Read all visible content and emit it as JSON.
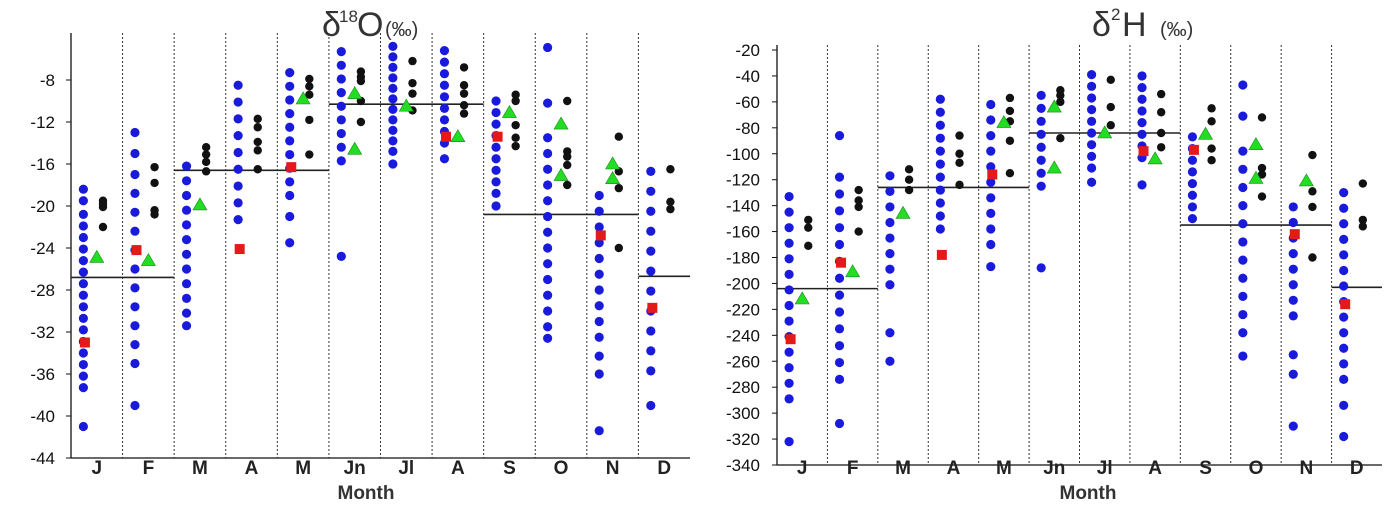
{
  "chart_data": [
    {
      "type": "scatter",
      "title": {
        "delta": "δ",
        "sup": "18",
        "element": "O",
        "unit": "(‰)"
      },
      "xlabel": "Month",
      "ylabel": "",
      "categories": [
        "J",
        "F",
        "M",
        "A",
        "M",
        "Jn",
        "Jl",
        "A",
        "S",
        "O",
        "N",
        "D"
      ],
      "ylim": [
        -44,
        -4
      ],
      "yticks": [
        -8,
        -12,
        -16,
        -20,
        -24,
        -28,
        -32,
        -36,
        -40,
        -44
      ],
      "colors": {
        "blue": "#1a1adc",
        "black": "#111111",
        "red": "#e41a1a",
        "green": "#22dd22",
        "line": "#222222"
      },
      "mean_line": [
        -26.8,
        -26.8,
        -16.6,
        -16.6,
        -16.6,
        -10.3,
        -10.3,
        -10.3,
        -20.8,
        -20.8,
        -20.8,
        -26.7
      ],
      "red_values": [
        -33,
        -24.2,
        null,
        -24.1,
        -16.3,
        null,
        null,
        -13.4,
        -13.4,
        null,
        -22.8,
        -29.7
      ],
      "green_values": [
        [
          -24.9
        ],
        [
          -25.2
        ],
        [
          -19.9
        ],
        [],
        [
          -9.8
        ],
        [
          -9.3,
          -14.6
        ],
        [
          -10.5
        ],
        [
          -13.4
        ],
        [
          -11.1
        ],
        [
          -12.2,
          -17.1
        ],
        [
          -16,
          -17.4
        ],
        []
      ],
      "black_values": [
        [
          -19.5,
          -19.8,
          -20.1,
          -22
        ],
        [
          -16.3,
          -17.8,
          -20.4,
          -20.8
        ],
        [
          -14.4,
          -15.1,
          -15.8,
          -16.7
        ],
        [
          -11.7,
          -12.5,
          -13.9,
          -14.7,
          -16.5
        ],
        [
          -7.9,
          -8.6,
          -9.4,
          -11.8,
          -15.1
        ],
        [
          -7.2,
          -7.7,
          -8.1,
          -10,
          -12
        ],
        [
          -6.2,
          -8.3,
          -9.3,
          -10.9
        ],
        [
          -6.8,
          -8.5,
          -9.3,
          -10.4,
          -11.2
        ],
        [
          -9.4,
          -10,
          -12.3,
          -13.5,
          -14.3
        ],
        [
          -10,
          -14.8,
          -15.3,
          -16.1,
          -18
        ],
        [
          -13.4,
          -16.7,
          -18.3,
          -24
        ],
        [
          -16.5,
          -19.6,
          -20.3
        ]
      ],
      "blue_values": [
        [
          -18.4,
          -19.5,
          -20.8,
          -21.9,
          -23,
          -24.1,
          -25.2,
          -26.3,
          -27.4,
          -28.5,
          -29.6,
          -30.7,
          -31.8,
          -32.9,
          -34,
          -35.1,
          -36.2,
          -37.3,
          -41
        ],
        [
          -13,
          -15,
          -17,
          -18.8,
          -20.6,
          -22.4,
          -24.2,
          -26,
          -27.8,
          -29.6,
          -31.4,
          -33.2,
          -35,
          -39
        ],
        [
          -16.2,
          -17.6,
          -19,
          -20.4,
          -21.8,
          -23.2,
          -24.6,
          -26,
          -27.4,
          -28.8,
          -30.2,
          -31.4
        ],
        [
          -8.5,
          -10.1,
          -11.7,
          -13.3,
          -14.9,
          -16.5,
          -18.1,
          -19.7,
          -21.3
        ],
        [
          -7.3,
          -8.6,
          -9.9,
          -11.2,
          -12.5,
          -13.8,
          -15.1,
          -16.4,
          -17.7,
          -19,
          -21,
          -23.5
        ],
        [
          -5.3,
          -6.6,
          -7.9,
          -9.2,
          -10.5,
          -11.8,
          -13.1,
          -14.4,
          -15.7,
          -24.8
        ],
        [
          -4.8,
          -5.8,
          -6.8,
          -7.8,
          -8.8,
          -9.8,
          -10.8,
          -11.8,
          -12.8,
          -13.8,
          -14.8,
          -16
        ],
        [
          -5.2,
          -6.3,
          -7.4,
          -8.5,
          -9.6,
          -10.7,
          -11.8,
          -12.9,
          -14,
          -15.5
        ],
        [
          -10,
          -11.1,
          -12.2,
          -13.3,
          -14.4,
          -15.5,
          -16.6,
          -17.7,
          -18.8,
          -20
        ],
        [
          -4.9,
          -10.2,
          -13.5,
          -15,
          -16.5,
          -18,
          -19.5,
          -21,
          -22.5,
          -24,
          -25.5,
          -27,
          -28.5,
          -30,
          -31.5,
          -32.6
        ],
        [
          -19,
          -20.5,
          -22,
          -23.5,
          -25,
          -26.5,
          -28,
          -29.5,
          -31,
          -32.5,
          -34.3,
          -36,
          -41.4
        ],
        [
          -16.7,
          -18.6,
          -20.5,
          -22.4,
          -24.3,
          -26.2,
          -28.1,
          -30,
          -31.9,
          -33.8,
          -35.7,
          -39
        ]
      ]
    },
    {
      "type": "scatter",
      "title": {
        "delta": "δ",
        "sup": "2",
        "element": "H",
        "unit": "(‰)"
      },
      "xlabel": "Month",
      "ylabel": "",
      "categories": [
        "J",
        "F",
        "M",
        "A",
        "M",
        "Jn",
        "Jl",
        "A",
        "S",
        "O",
        "N",
        "D"
      ],
      "ylim": [
        -340,
        -20
      ],
      "yticks": [
        -20,
        -40,
        -60,
        -80,
        -100,
        -120,
        -140,
        -160,
        -180,
        -200,
        -220,
        -240,
        -260,
        -280,
        -300,
        -320,
        -340
      ],
      "colors": {
        "blue": "#1a1adc",
        "black": "#111111",
        "red": "#e41a1a",
        "green": "#22dd22",
        "line": "#222222"
      },
      "mean_line": [
        -204,
        -204,
        -126,
        -126,
        -126,
        -84,
        -84,
        -84,
        -155,
        -155,
        -155,
        -203
      ],
      "red_values": [
        -243,
        -184,
        null,
        -178,
        -116,
        null,
        null,
        -98,
        -97,
        null,
        -162,
        -216
      ],
      "green_values": [
        [
          -212
        ],
        [
          -191
        ],
        [
          -146
        ],
        [],
        [
          -76
        ],
        [
          -64,
          -111
        ],
        [
          -84
        ],
        [
          -104
        ],
        [
          -85
        ],
        [
          -93,
          -119
        ],
        [
          -121
        ],
        []
      ],
      "black_values": [
        [
          -151,
          -157,
          -171
        ],
        [
          -128,
          -136,
          -141,
          -160
        ],
        [
          -112,
          -120,
          -128
        ],
        [
          -86,
          -100,
          -107,
          -124
        ],
        [
          -57,
          -67,
          -75,
          -90,
          -115
        ],
        [
          -51,
          -55,
          -60,
          -88
        ],
        [
          -43,
          -64,
          -78
        ],
        [
          -54,
          -68,
          -84,
          -95
        ],
        [
          -65,
          -75,
          -96,
          -105
        ],
        [
          -72,
          -111,
          -116,
          -133
        ],
        [
          -101,
          -129,
          -141,
          -180
        ],
        [
          -123,
          -151,
          -156
        ]
      ],
      "blue_values": [
        [
          -133,
          -145,
          -157,
          -169,
          -181,
          -193,
          -205,
          -217,
          -229,
          -241,
          -253,
          -265,
          -277,
          -289,
          -322
        ],
        [
          -86,
          -118,
          -131,
          -144,
          -157,
          -170,
          -183,
          -196,
          -209,
          -222,
          -235,
          -248,
          -261,
          -274,
          -308
        ],
        [
          -117,
          -129,
          -141,
          -153,
          -165,
          -177,
          -189,
          -201,
          -238,
          -260
        ],
        [
          -58,
          -68,
          -78,
          -88,
          -98,
          -108,
          -118,
          -128,
          -138,
          -148,
          -158
        ],
        [
          -62,
          -74,
          -86,
          -98,
          -110,
          -122,
          -134,
          -146,
          -158,
          -170,
          -187
        ],
        [
          -55,
          -65,
          -75,
          -85,
          -95,
          -105,
          -115,
          -125,
          -188
        ],
        [
          -39,
          -48,
          -57,
          -66,
          -75,
          -84,
          -93,
          -102,
          -111,
          -122
        ],
        [
          -40,
          -49,
          -58,
          -67,
          -76,
          -85,
          -94,
          -103,
          -124
        ],
        [
          -87,
          -96,
          -105,
          -114,
          -123,
          -132,
          -141,
          -150
        ],
        [
          -47,
          -71,
          -98,
          -112,
          -126,
          -140,
          -154,
          -168,
          -182,
          -196,
          -210,
          -224,
          -238,
          -256
        ],
        [
          -141,
          -153,
          -165,
          -177,
          -189,
          -201,
          -213,
          -225,
          -255,
          -270,
          -310
        ],
        [
          -130,
          -142,
          -154,
          -166,
          -178,
          -190,
          -202,
          -214,
          -226,
          -238,
          -250,
          -262,
          -274,
          -294,
          -318
        ]
      ]
    }
  ]
}
